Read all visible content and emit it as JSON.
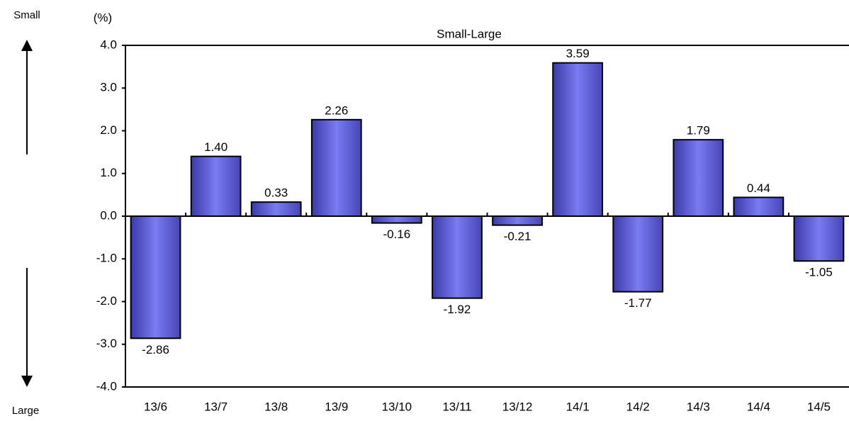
{
  "chart_data": {
    "type": "bar",
    "title": "Small-Large",
    "ylabel": "(%)",
    "annotations": [
      "Small",
      "Large"
    ],
    "categories": [
      "13/6",
      "13/7",
      "13/8",
      "13/9",
      "13/10",
      "13/11",
      "13/12",
      "14/1",
      "14/2",
      "14/3",
      "14/4",
      "14/5"
    ],
    "values": [
      -2.86,
      1.4,
      0.33,
      2.26,
      -0.16,
      -1.92,
      -0.21,
      3.59,
      -1.77,
      1.79,
      0.44,
      -1.05
    ],
    "value_labels": [
      "-2.86",
      "1.40",
      "0.33",
      "2.26",
      "-0.16",
      "-1.92",
      "-0.21",
      "3.59",
      "-1.77",
      "1.79",
      "0.44",
      "-1.05"
    ],
    "color": "#7b7bf2",
    "ylim": [
      -4,
      4
    ],
    "yticks": [
      {
        "value": 4,
        "label": "4.0"
      },
      {
        "value": 3,
        "label": "3.0"
      },
      {
        "value": 2,
        "label": "2.0"
      },
      {
        "value": 1,
        "label": "1.0"
      },
      {
        "value": 0,
        "label": "0.0"
      },
      {
        "value": -1,
        "label": "-1.0"
      },
      {
        "value": -2,
        "label": "-2.0"
      },
      {
        "value": -3,
        "label": "-3.0"
      },
      {
        "value": -4,
        "label": "-4.0"
      }
    ]
  }
}
